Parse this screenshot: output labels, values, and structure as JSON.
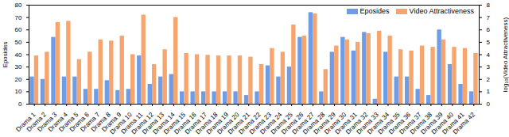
{
  "chart_data": {
    "type": "bar",
    "categories": [
      "Drama 1",
      "Drama 2",
      "Drama 3",
      "Drama 4",
      "Drama 5",
      "Drama 6",
      "Drama 7",
      "Drama 8",
      "Drama 9",
      "Drama 10",
      "Drama 11",
      "Drama 12",
      "Drama 13",
      "Drama 14",
      "Drama 15",
      "Drama 16",
      "Drama 17",
      "Drama 18",
      "Drama 19",
      "Drama 20",
      "Drama 21",
      "Drama 22",
      "Drama 23",
      "Drama 24",
      "Drama 25",
      "Drama 26",
      "Drama 27",
      "Drama 28",
      "Drama 29",
      "Drama 30",
      "Drama 31",
      "Drama 32",
      "Drama 33",
      "Drama 34",
      "Drama 35",
      "Drama 36",
      "Drama 37",
      "Drama 38",
      "Drama 39",
      "Drama 40",
      "Drama 41",
      "Drama 42"
    ],
    "series": [
      {
        "name": "Eposides",
        "color": "#6f9ce6",
        "values": [
          22,
          20,
          54,
          22,
          22,
          12,
          12,
          19,
          11,
          12,
          39,
          16,
          22,
          24,
          10,
          10,
          10,
          10,
          10,
          10,
          7,
          10,
          31,
          22,
          30,
          54,
          74,
          10,
          42,
          54,
          43,
          58,
          4,
          42,
          22,
          22,
          12,
          7,
          60,
          32,
          16,
          10
        ]
      },
      {
        "name": "Video Attractiveness",
        "color": "#f6a56f",
        "axis": "y2",
        "values": [
          3.9,
          4.2,
          6.6,
          6.7,
          3.6,
          4.2,
          5.2,
          5.1,
          5.5,
          4.0,
          7.2,
          3.2,
          4.4,
          7.0,
          4.1,
          4.0,
          3.95,
          3.9,
          3.9,
          3.9,
          3.8,
          3.2,
          4.5,
          4.2,
          6.4,
          5.5,
          7.3,
          2.8,
          4.7,
          5.2,
          5.0,
          5.7,
          5.9,
          5.5,
          4.4,
          4.3,
          4.7,
          4.6,
          5.2,
          4.6,
          4.5,
          4.1
        ]
      }
    ],
    "ylabel": "Eposides",
    "y2label": "log₁₀(Video Attractiveness)",
    "ylim": [
      0,
      80
    ],
    "yticks": [
      0,
      10,
      20,
      30,
      40,
      50,
      60,
      70,
      80
    ],
    "y2lim": [
      0,
      8
    ],
    "y2ticks": [
      0,
      1,
      2,
      3,
      4,
      5,
      6,
      7,
      8
    ],
    "legend": "top-right"
  }
}
